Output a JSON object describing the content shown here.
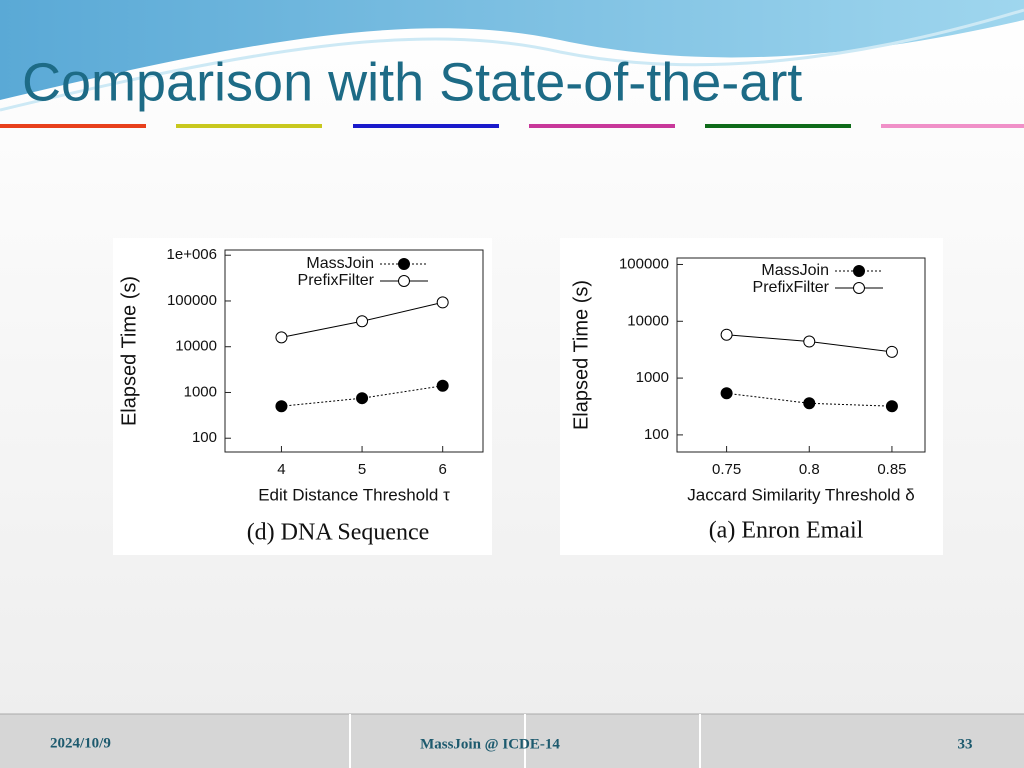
{
  "slide_title": "Comparison with State-of-the-art",
  "footer": {
    "date": "2024/10/9",
    "center": "MassJoin @ ICDE-14",
    "page": "33"
  },
  "chart_data": [
    {
      "type": "line",
      "title": "(d) DNA Sequence",
      "x_label": "Edit Distance Threshold τ",
      "y_label": "Elapsed Time (s)",
      "x": [
        4,
        5,
        6
      ],
      "series": [
        {
          "name": "MassJoin",
          "color": "#000000",
          "marker": "filled",
          "dashed": true,
          "values": [
            500,
            750,
            1400
          ]
        },
        {
          "name": "PrefixFilter",
          "color": "#000000",
          "marker": "open",
          "dashed": false,
          "values": [
            16000,
            36000,
            93000
          ]
        }
      ],
      "xlim": [
        3.3,
        6.5
      ],
      "xticks": [
        4,
        5,
        6
      ],
      "ylim": [
        50,
        1300000
      ],
      "log_y": true,
      "yticks": [
        100,
        1000,
        10000,
        100000,
        {
          "value": 1000000,
          "label": "1e+006"
        }
      ]
    },
    {
      "type": "line",
      "title": "(a) Enron Email",
      "x_label": "Jaccard Similarity Threshold δ",
      "y_label": "Elapsed Time (s)",
      "x": [
        0.75,
        0.8,
        0.85
      ],
      "series": [
        {
          "name": "MassJoin",
          "color": "#000000",
          "marker": "filled",
          "dashed": true,
          "values": [
            540,
            360,
            320
          ]
        },
        {
          "name": "PrefixFilter",
          "color": "#000000",
          "marker": "open",
          "dashed": false,
          "values": [
            5800,
            4400,
            2900
          ]
        }
      ],
      "xlim": [
        0.72,
        0.87
      ],
      "xticks": [
        0.75,
        0.8,
        0.85
      ],
      "ylim": [
        50,
        130000
      ],
      "log_y": true,
      "yticks": [
        100,
        1000,
        10000,
        100000
      ]
    }
  ]
}
